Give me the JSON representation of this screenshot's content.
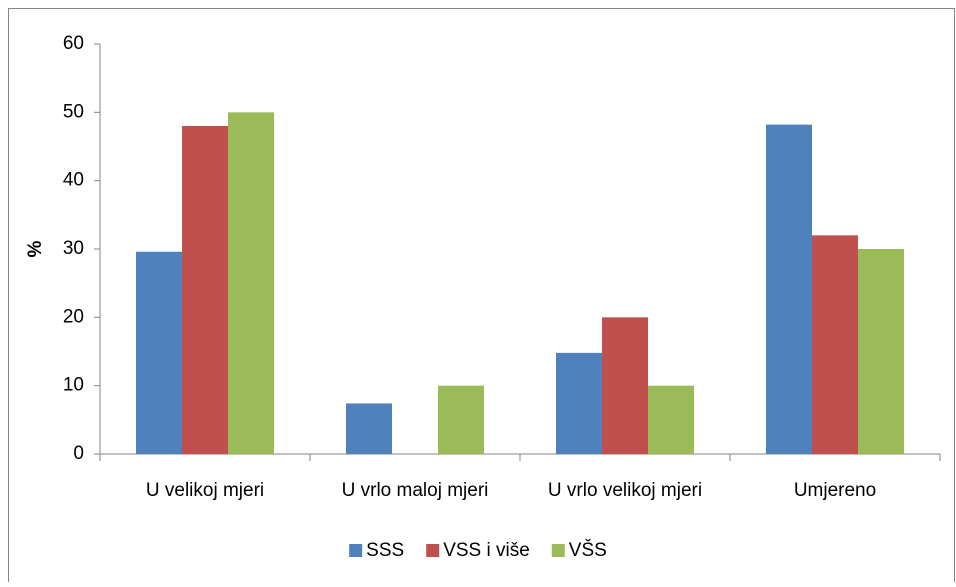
{
  "chart_data": {
    "type": "bar",
    "y_label": "%",
    "categories": [
      "U velikoj mjeri",
      "U vrlo maloj mjeri",
      "U vrlo velikoj mjeri",
      "Umjereno"
    ],
    "series": [
      {
        "name": "SSS",
        "color": "#4f81bd",
        "values": [
          29.6,
          7.4,
          14.8,
          48.2
        ]
      },
      {
        "name": "VSS i više",
        "color": "#c0504d",
        "values": [
          48,
          0,
          20,
          32
        ]
      },
      {
        "name": "VŠS",
        "color": "#9bbb59",
        "values": [
          50,
          10,
          10,
          30
        ]
      }
    ],
    "ylim": [
      0,
      60
    ],
    "yticks": [
      0,
      10,
      20,
      30,
      40,
      50,
      60
    ],
    "legend": "bottom"
  }
}
